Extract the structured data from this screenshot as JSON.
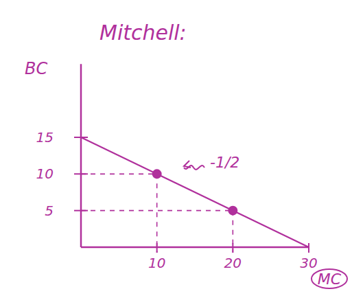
{
  "chart_data": {
    "type": "line",
    "title": "Mitchell:",
    "x_label": "MC",
    "y_label": "BC",
    "color": "#b0309c",
    "xlim": [
      0,
      30
    ],
    "xticks": [
      10,
      20,
      30
    ],
    "ylim": [
      0,
      25
    ],
    "yticks": [
      5,
      10,
      15
    ],
    "grid": false,
    "annotation": "-1/2",
    "series": [
      {
        "type": "line",
        "x": [
          0,
          30
        ],
        "values": [
          15,
          0
        ],
        "line_style": "solid"
      },
      {
        "type": "scatter",
        "x": [
          10,
          20
        ],
        "values": [
          10,
          5
        ],
        "marker": "circle",
        "line_style": "dashed"
      }
    ]
  }
}
